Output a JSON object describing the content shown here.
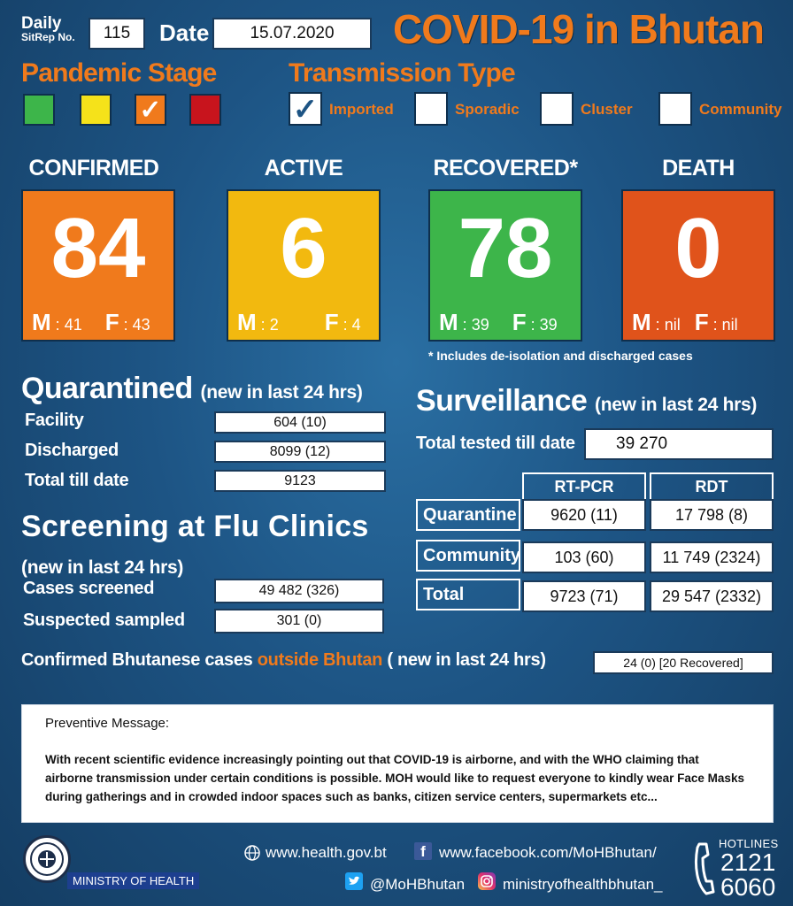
{
  "header": {
    "sitrep_label_line1": "Daily",
    "sitrep_label_line2": "SitRep No.",
    "sitrep_no": "115",
    "date_label": "Date",
    "date": "15.07.2020",
    "title": "COVID-19 in Bhutan"
  },
  "pandemic_stage": {
    "heading": "Pandemic Stage",
    "levels": [
      {
        "color": "#3db54a",
        "checked": false
      },
      {
        "color": "#f5e21a",
        "checked": false
      },
      {
        "color": "#f07a1c",
        "checked": true
      },
      {
        "color": "#c8141d",
        "checked": false
      }
    ]
  },
  "transmission": {
    "heading": "Transmission Type",
    "types": [
      {
        "label": "Imported",
        "checked": true
      },
      {
        "label": "Sporadic",
        "checked": false
      },
      {
        "label": "Cluster",
        "checked": false
      },
      {
        "label": "Community",
        "checked": false
      }
    ]
  },
  "stats": {
    "confirmed": {
      "title": "CONFIRMED",
      "value": "84",
      "m": "41",
      "f": "43",
      "color": "#f07a1c"
    },
    "active": {
      "title": "ACTIVE",
      "value": "6",
      "m": "2",
      "f": "4",
      "color": "#f2b90f"
    },
    "recovered": {
      "title": "RECOVERED*",
      "value": "78",
      "m": "39",
      "f": "39",
      "color": "#3db54a"
    },
    "death": {
      "title": "DEATH",
      "value": "0",
      "m": "nil",
      "f": "nil",
      "color": "#e0531b"
    },
    "m_letter": "M",
    "f_letter": "F",
    "footnote": "* Includes de-isolation and discharged cases"
  },
  "quarantined": {
    "heading": "Quarantined",
    "subheading": "(new in last 24 hrs)",
    "rows": [
      {
        "label": "Facility",
        "value": "604 (10)"
      },
      {
        "label": "Discharged",
        "value": "8099 (12)"
      },
      {
        "label": "Total till date",
        "value": "9123"
      }
    ]
  },
  "screening": {
    "heading": "Screening at Flu Clinics",
    "subheading": "(new in last 24 hrs)",
    "rows": [
      {
        "label": "Cases screened",
        "value": "49 482 (326)"
      },
      {
        "label": "Suspected sampled",
        "value": "301 (0)"
      }
    ]
  },
  "surveillance": {
    "heading": "Surveillance",
    "subheading": "(new in last 24 hrs)",
    "total_label": "Total tested till date",
    "total_value": "39 270",
    "columns": [
      "RT-PCR",
      "RDT"
    ],
    "rows": [
      {
        "label": "Quarantine",
        "rtpcr": "9620 (11)",
        "rdt": "17 798 (8)"
      },
      {
        "label": "Community",
        "rtpcr": "103 (60)",
        "rdt": "11 749 (2324)"
      },
      {
        "label": "Total",
        "rtpcr": "9723 (71)",
        "rdt": "29 547 (2332)"
      }
    ]
  },
  "outside": {
    "label_part1": "Confirmed Bhutanese cases",
    "label_highlight": "outside Bhutan",
    "label_part2": "( new in last 24 hrs)",
    "value": "24 (0) [20 Recovered]"
  },
  "message": {
    "heading": "Preventive Message:",
    "body": "With recent scientific evidence increasingly pointing out that COVID-19 is airborne, and with the WHO claiming that airborne transmission under certain conditions is possible. MOH would like to request everyone to kindly wear Face Masks during gatherings and in crowded indoor spaces such as banks, citizen service centers, supermarkets etc..."
  },
  "footer": {
    "ministry": "MINISTRY OF HEALTH",
    "website": "www.health.gov.bt",
    "facebook": "www.facebook.com/MoHBhutan/",
    "twitter": "@MoHBhutan",
    "instagram": "ministryofhealthbhutan_",
    "hotlines_label": "HOTLINES",
    "hotline1": "2121",
    "hotline2": "6060",
    "icons": [
      "emblem-icon",
      "globe-icon",
      "facebook-icon",
      "twitter-icon",
      "instagram-icon",
      "phone-icon"
    ]
  }
}
